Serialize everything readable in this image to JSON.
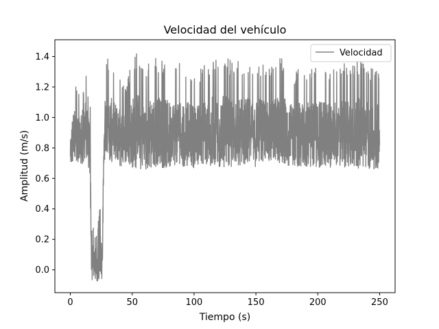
{
  "chart_data": {
    "type": "line",
    "title": "Velocidad del vehículo",
    "xlabel": "Tiempo (s)",
    "ylabel": "Amplitud (m/s)",
    "xlim": [
      -12.5,
      262.5
    ],
    "ylim": [
      -0.15,
      1.51
    ],
    "x_ticks": [
      0,
      50,
      100,
      150,
      200,
      250
    ],
    "x_tick_labels": [
      "0",
      "50",
      "100",
      "150",
      "200",
      "250"
    ],
    "y_ticks": [
      0.0,
      0.2,
      0.4,
      0.6,
      0.8,
      1.0,
      1.2,
      1.4
    ],
    "y_tick_labels": [
      "0.0",
      "0.2",
      "0.4",
      "0.6",
      "0.8",
      "1.0",
      "1.2",
      "1.4"
    ],
    "grid": false,
    "legend_position": "top-right",
    "series": [
      {
        "name": "Velocidad",
        "color": "#808080",
        "x": [
          0,
          2,
          4,
          6,
          8,
          10,
          12,
          14,
          15,
          16,
          17,
          18,
          20,
          22,
          24,
          26,
          27,
          28,
          30,
          32,
          35,
          40,
          45,
          50,
          55,
          60,
          70,
          80,
          90,
          100,
          110,
          120,
          130,
          140,
          150,
          160,
          170,
          180,
          190,
          200,
          210,
          220,
          230,
          240,
          250
        ],
        "min": [
          0.68,
          0.7,
          0.68,
          0.7,
          0.68,
          0.69,
          0.7,
          0.68,
          0.66,
          0.62,
          -0.06,
          -0.08,
          -0.06,
          -0.08,
          -0.08,
          -0.08,
          0.7,
          0.7,
          0.7,
          0.68,
          0.72,
          0.68,
          0.68,
          0.67,
          0.66,
          0.66,
          0.67,
          0.67,
          0.68,
          0.67,
          0.68,
          0.67,
          0.67,
          0.69,
          0.67,
          0.68,
          0.67,
          0.68,
          0.67,
          0.67,
          0.67,
          0.67,
          0.67,
          0.66,
          0.66
        ],
        "max": [
          0.92,
          1.24,
          1.26,
          1.2,
          1.14,
          1.44,
          1.38,
          1.18,
          1.2,
          1.16,
          0.32,
          0.3,
          0.24,
          0.28,
          0.42,
          0.3,
          1.26,
          1.36,
          1.4,
          1.38,
          1.32,
          1.26,
          1.2,
          1.38,
          1.44,
          1.35,
          1.4,
          1.34,
          1.36,
          1.3,
          1.36,
          1.4,
          1.38,
          1.36,
          1.38,
          1.34,
          1.4,
          1.3,
          1.34,
          1.36,
          1.3,
          1.36,
          1.38,
          1.36,
          1.3
        ]
      }
    ]
  }
}
